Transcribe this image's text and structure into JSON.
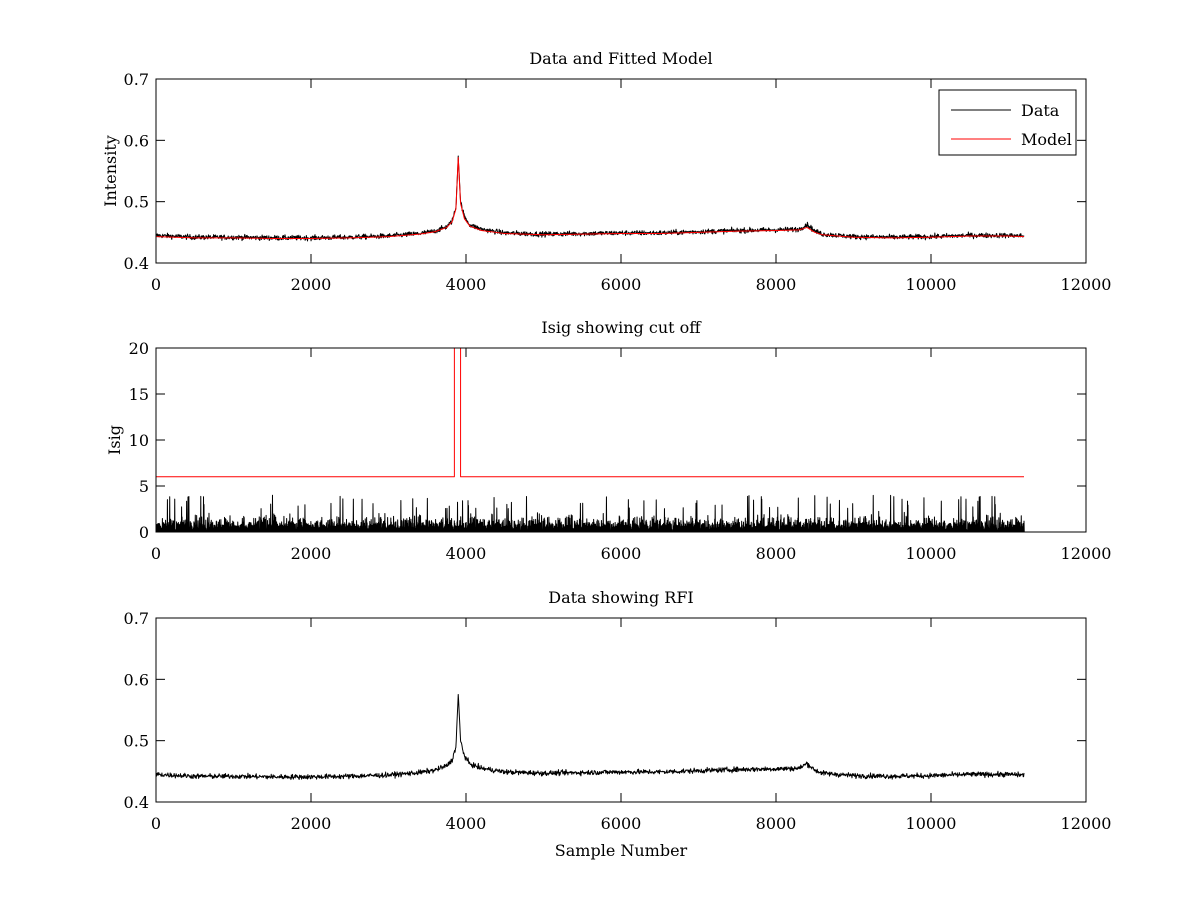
{
  "chart_data": [
    {
      "type": "line",
      "title": "Data and Fitted Model",
      "xlabel": "",
      "ylabel": "Intensity",
      "xlim": [
        0,
        12000
      ],
      "ylim": [
        0.4,
        0.7
      ],
      "xticks": [
        "0",
        "2000",
        "4000",
        "6000",
        "8000",
        "10000",
        "12000"
      ],
      "yticks": [
        "0.4",
        "0.5",
        "0.6",
        "0.7"
      ],
      "grid": false,
      "legend": {
        "position": "top-right",
        "entries": [
          {
            "label": "Data",
            "color": "#000000"
          },
          {
            "label": "Model",
            "color": "#ff0000"
          }
        ]
      },
      "series": [
        {
          "name": "Data",
          "color": "#000000",
          "noise": 0.004,
          "x": [
            0,
            500,
            1000,
            1500,
            2000,
            2500,
            3000,
            3400,
            3600,
            3750,
            3820,
            3870,
            3900,
            3930,
            3980,
            4050,
            4200,
            4500,
            5000,
            5500,
            6000,
            6500,
            7000,
            7500,
            8000,
            8300,
            8400,
            8500,
            8600,
            9000,
            9500,
            10000,
            10500,
            11000,
            11200
          ],
          "y": [
            0.445,
            0.442,
            0.442,
            0.441,
            0.441,
            0.442,
            0.444,
            0.448,
            0.452,
            0.459,
            0.468,
            0.49,
            0.575,
            0.5,
            0.475,
            0.462,
            0.455,
            0.449,
            0.447,
            0.448,
            0.449,
            0.449,
            0.451,
            0.453,
            0.454,
            0.455,
            0.463,
            0.452,
            0.447,
            0.443,
            0.442,
            0.443,
            0.445,
            0.445,
            0.444
          ]
        },
        {
          "name": "Model",
          "color": "#ff0000",
          "noise": 0,
          "x": [
            0,
            500,
            1000,
            1500,
            2000,
            2500,
            3000,
            3400,
            3600,
            3750,
            3820,
            3870,
            3900,
            3930,
            3980,
            4050,
            4200,
            4500,
            5000,
            5500,
            6000,
            6500,
            7000,
            7500,
            8000,
            8300,
            8400,
            8500,
            8600,
            9000,
            9500,
            10000,
            10500,
            11000,
            11200
          ],
          "y": [
            0.443,
            0.441,
            0.441,
            0.44,
            0.44,
            0.441,
            0.443,
            0.447,
            0.451,
            0.458,
            0.467,
            0.488,
            0.572,
            0.497,
            0.472,
            0.46,
            0.453,
            0.448,
            0.446,
            0.447,
            0.448,
            0.448,
            0.45,
            0.452,
            0.453,
            0.454,
            0.458,
            0.45,
            0.446,
            0.442,
            0.441,
            0.442,
            0.444,
            0.444,
            0.443
          ]
        }
      ]
    },
    {
      "type": "line",
      "title": "Isig showing cut off",
      "xlabel": "",
      "ylabel": "Isig",
      "xlim": [
        0,
        12000
      ],
      "ylim": [
        0,
        20
      ],
      "xticks": [
        "0",
        "2000",
        "4000",
        "6000",
        "8000",
        "10000",
        "12000"
      ],
      "yticks": [
        "0",
        "5",
        "10",
        "15",
        "20"
      ],
      "grid": false,
      "series": [
        {
          "name": "Isig",
          "color": "#000000",
          "style": "spiky-noise",
          "x_range": [
            0,
            11200
          ],
          "typical_max": 2.5,
          "peak_max": 4
        },
        {
          "name": "Cut off",
          "color": "#ff0000",
          "x": [
            0,
            3850,
            3850,
            3930,
            3930,
            11200
          ],
          "y": [
            6,
            6,
            20,
            20,
            6,
            6
          ]
        }
      ]
    },
    {
      "type": "line",
      "title": "Data showing RFI",
      "xlabel": "Sample Number",
      "ylabel": "",
      "xlim": [
        0,
        12000
      ],
      "ylim": [
        0.4,
        0.7
      ],
      "xticks": [
        "0",
        "2000",
        "4000",
        "6000",
        "8000",
        "10000",
        "12000"
      ],
      "yticks": [
        "0.4",
        "0.5",
        "0.6",
        "0.7"
      ],
      "grid": false,
      "series": [
        {
          "name": "Data",
          "color": "#000000",
          "noise": 0.004,
          "x": [
            0,
            500,
            1000,
            1500,
            2000,
            2500,
            3000,
            3400,
            3600,
            3750,
            3820,
            3870,
            3900,
            3930,
            3980,
            4050,
            4200,
            4500,
            5000,
            5500,
            6000,
            6500,
            7000,
            7500,
            8000,
            8300,
            8400,
            8500,
            8600,
            9000,
            9500,
            10000,
            10500,
            11000,
            11200
          ],
          "y": [
            0.445,
            0.442,
            0.442,
            0.441,
            0.441,
            0.442,
            0.444,
            0.448,
            0.452,
            0.459,
            0.468,
            0.49,
            0.575,
            0.5,
            0.475,
            0.462,
            0.455,
            0.449,
            0.447,
            0.448,
            0.449,
            0.449,
            0.451,
            0.453,
            0.454,
            0.455,
            0.463,
            0.452,
            0.447,
            0.443,
            0.442,
            0.443,
            0.445,
            0.445,
            0.444
          ]
        }
      ]
    }
  ]
}
